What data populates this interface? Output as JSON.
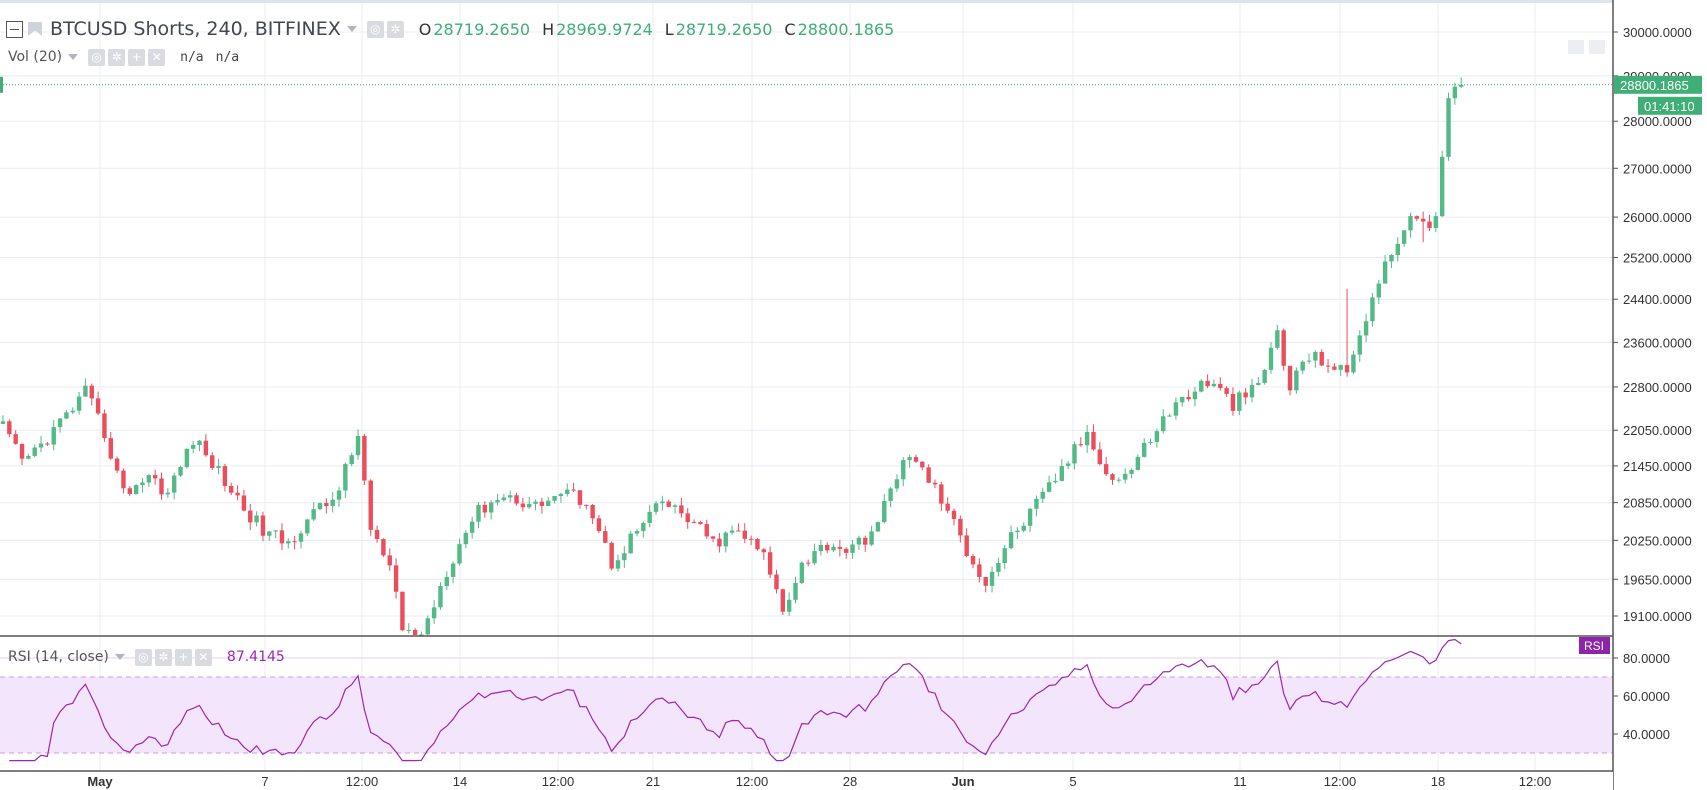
{
  "header": {
    "symbol_title": "BTCUSD Shorts, 240, BITFINEX",
    "ohlc": [
      {
        "key": "O",
        "value": "28719.2650"
      },
      {
        "key": "H",
        "value": "28969.9724"
      },
      {
        "key": "L",
        "value": "28719.2650"
      },
      {
        "key": "C",
        "value": "28800.1865"
      }
    ]
  },
  "volume_indicator": {
    "label": "Vol (20)",
    "values": [
      "n/a",
      "n/a"
    ]
  },
  "rsi_indicator": {
    "label": "RSI (14, close)",
    "value": "87.4145",
    "tag": "RSI"
  },
  "price_tags": {
    "last_price": "28800.1865",
    "countdown": "01:41:10"
  },
  "colors": {
    "up": "#53b987",
    "down": "#eb4d5c",
    "rsi_line": "#9c27b0",
    "rsi_fill": "#f3e5fb",
    "grid": "#e8ecf2",
    "last_price": "#3fae77"
  },
  "chart_data": [
    {
      "type": "candlestick",
      "title": "BTCUSD Shorts, 240, BITFINEX",
      "grid": true,
      "y_scale": "log",
      "ylim": [
        18900,
        30500
      ],
      "yticks": [
        "30000.0000",
        "29000.0000",
        "28000.0000",
        "27000.0000",
        "26000.0000",
        "25200.0000",
        "24400.0000",
        "23600.0000",
        "22800.0000",
        "22050.0000",
        "21450.0000",
        "20850.0000",
        "20250.0000",
        "19650.0000",
        "19100.0000"
      ],
      "x_tick_labels": [
        "May",
        "7",
        "12:00",
        "14",
        "12:00",
        "21",
        "12:00",
        "28",
        "Jun",
        "5",
        "11",
        "12:00",
        "18",
        "12:00"
      ],
      "anchors": [
        [
          0,
          22100
        ],
        [
          3,
          21500
        ],
        [
          6,
          21800
        ],
        [
          10,
          22300
        ],
        [
          13,
          22700
        ],
        [
          16,
          22000
        ],
        [
          19,
          21000
        ],
        [
          23,
          21300
        ],
        [
          26,
          21000
        ],
        [
          30,
          21900
        ],
        [
          33,
          21500
        ],
        [
          37,
          20900
        ],
        [
          41,
          20400
        ],
        [
          45,
          20200
        ],
        [
          48,
          20600
        ],
        [
          52,
          20900
        ],
        [
          55,
          21600
        ],
        [
          56,
          22000
        ],
        [
          58,
          20400
        ],
        [
          61,
          19800
        ],
        [
          63,
          18900
        ],
        [
          66,
          18800
        ],
        [
          70,
          19800
        ],
        [
          74,
          20600
        ],
        [
          77,
          20900
        ],
        [
          80,
          20950
        ],
        [
          84,
          20800
        ],
        [
          88,
          21000
        ],
        [
          92,
          20900
        ],
        [
          96,
          19900
        ],
        [
          100,
          20400
        ],
        [
          104,
          20850
        ],
        [
          108,
          20600
        ],
        [
          112,
          20200
        ],
        [
          116,
          20400
        ],
        [
          120,
          20000
        ],
        [
          123,
          19200
        ],
        [
          126,
          19900
        ],
        [
          130,
          20200
        ],
        [
          134,
          20100
        ],
        [
          138,
          20500
        ],
        [
          142,
          21600
        ],
        [
          145,
          21400
        ],
        [
          148,
          20900
        ],
        [
          152,
          20100
        ],
        [
          155,
          19600
        ],
        [
          159,
          20300
        ],
        [
          163,
          20800
        ],
        [
          167,
          21400
        ],
        [
          171,
          22000
        ],
        [
          175,
          21200
        ],
        [
          178,
          21400
        ],
        [
          182,
          22100
        ],
        [
          186,
          22600
        ],
        [
          190,
          22900
        ],
        [
          194,
          22500
        ],
        [
          198,
          22800
        ],
        [
          201,
          23800
        ],
        [
          203,
          22700
        ],
        [
          205,
          23300
        ],
        [
          208,
          23300
        ],
        [
          212,
          23000
        ],
        [
          214,
          23800
        ],
        [
          217,
          24700
        ],
        [
          220,
          25600
        ],
        [
          223,
          26000
        ],
        [
          226,
          25900
        ],
        [
          228,
          28400
        ],
        [
          230,
          28800
        ]
      ],
      "n_candles": 231,
      "last_close": 28800.1865
    },
    {
      "type": "line",
      "title": "RSI (14, close)",
      "ylim": [
        26,
        94
      ],
      "yticks": [
        "80.0000",
        "60.0000",
        "40.0000"
      ],
      "bands": [
        70,
        30
      ],
      "last_value": 87.4145
    }
  ]
}
